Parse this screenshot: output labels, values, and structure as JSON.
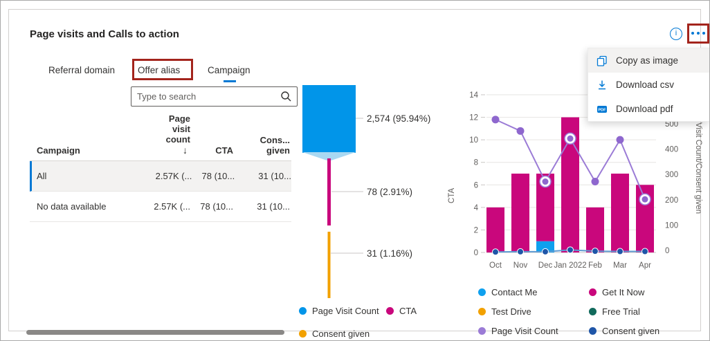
{
  "card": {
    "title": "Page visits and Calls to action"
  },
  "header_actions": {
    "info_icon": "i",
    "more_icon": "ellipsis"
  },
  "tabs": [
    {
      "label": "Referral domain",
      "selected": false
    },
    {
      "label": "Offer alias",
      "selected": false,
      "annotated": true
    },
    {
      "label": "Campaign",
      "selected": true
    }
  ],
  "search": {
    "placeholder": "Type to search",
    "icon": "magnifier"
  },
  "table": {
    "columns": [
      {
        "header": "Campaign"
      },
      {
        "header": "Page visit count",
        "sort_glyph": "↓",
        "sort": "descending"
      },
      {
        "header": "CTA"
      },
      {
        "header": "Cons... given"
      }
    ],
    "rows": [
      {
        "campaign": "All",
        "page_visit_count": "2.57K (...",
        "cta": "78 (10...",
        "consent_given": "31 (10...",
        "selected": true
      },
      {
        "campaign": "No data available",
        "page_visit_count": "2.57K (...",
        "cta": "78 (10...",
        "consent_given": "31 (10...",
        "selected": false
      }
    ]
  },
  "menu": {
    "items": [
      {
        "label": "Copy as image",
        "icon": "copy-icon",
        "hovered": true
      },
      {
        "label": "Download csv",
        "icon": "download-icon",
        "hovered": false
      },
      {
        "label": "Download pdf",
        "icon": "pdf-icon",
        "hovered": false
      }
    ]
  },
  "annotations": {
    "color": "#A3241C",
    "targets": [
      "Offer alias tab",
      "More options button"
    ]
  },
  "colors": {
    "accent": "#0078D4",
    "page_visit_blue": "#0195E9",
    "funnel_taper": "#A9D8F2",
    "cta_magenta": "#C9077C",
    "consent_orange": "#F2A100",
    "purple_line": "#9B7BD6",
    "purple_marker": "#8E67CE",
    "navy": "#1F56A8",
    "teal": "#116A5C",
    "consent_line": "#5E9BD3",
    "annotation_red": "#A3241C",
    "scrollbar": "#8A8886"
  },
  "chart_data": [
    {
      "type": "funnel",
      "stages": [
        {
          "name": "Page Visit Count",
          "value": 2574,
          "label": "2,574 (95.94%)",
          "color": "#0195E9"
        },
        {
          "name": "CTA",
          "value": 78,
          "label": "78 (2.91%)",
          "color": "#C9077C"
        },
        {
          "name": "Consent given",
          "value": 31,
          "label": "31 (1.16%)",
          "color": "#F2A100"
        }
      ]
    },
    {
      "type": "combo-bar-line",
      "categories": [
        "Oct",
        "Nov",
        "Dec",
        "Jan 2022",
        "Feb",
        "Mar",
        "Apr"
      ],
      "left_axis": {
        "title": "CTA",
        "min": 0,
        "max": 14,
        "ticks": [
          0,
          2,
          4,
          6,
          8,
          10,
          12,
          14
        ]
      },
      "right_axis": {
        "title": "Page Visit Count/Consent given",
        "min": 0,
        "max": 500,
        "ticks": [
          0,
          100,
          200,
          300,
          400,
          500
        ]
      },
      "bar_series": [
        {
          "name": "Contact Me",
          "color": "#0FA0EE",
          "axis": "left",
          "values": [
            0,
            0,
            1,
            0,
            0,
            0,
            0
          ]
        },
        {
          "name": "Get It Now",
          "color": "#C9077C",
          "axis": "left",
          "values": [
            4,
            7,
            6,
            12,
            4,
            7,
            6
          ]
        },
        {
          "name": "Test Drive",
          "color": "#F2A100",
          "axis": "left",
          "values": [
            0,
            0,
            0,
            0,
            0,
            0,
            0
          ]
        },
        {
          "name": "Free Trial",
          "color": "#116A5C",
          "axis": "left",
          "values": [
            0,
            0,
            0,
            0,
            0,
            0,
            0
          ]
        }
      ],
      "line_series": [
        {
          "name": "Page Visit Count",
          "color": "#9B7BD6",
          "marker_color": "#8E67CE",
          "axis": "right",
          "values": [
            525,
            480,
            280,
            450,
            280,
            445,
            210
          ],
          "ring_markers": [
            2,
            3,
            6
          ]
        },
        {
          "name": "Consent given",
          "color": "#1F56A8",
          "line_color": "#5E9BD3",
          "axis": "right",
          "values": [
            2,
            3,
            3,
            10,
            5,
            4,
            4
          ]
        }
      ],
      "legend": [
        {
          "label": "Contact Me",
          "color": "#0FA0EE"
        },
        {
          "label": "Get It Now",
          "color": "#C9077C"
        },
        {
          "label": "Test Drive",
          "color": "#F2A100"
        },
        {
          "label": "Free Trial",
          "color": "#116A5C"
        },
        {
          "label": "Page Visit Count",
          "color": "#9B7BD6"
        },
        {
          "label": "Consent given",
          "color": "#1F56A8"
        }
      ]
    }
  ]
}
